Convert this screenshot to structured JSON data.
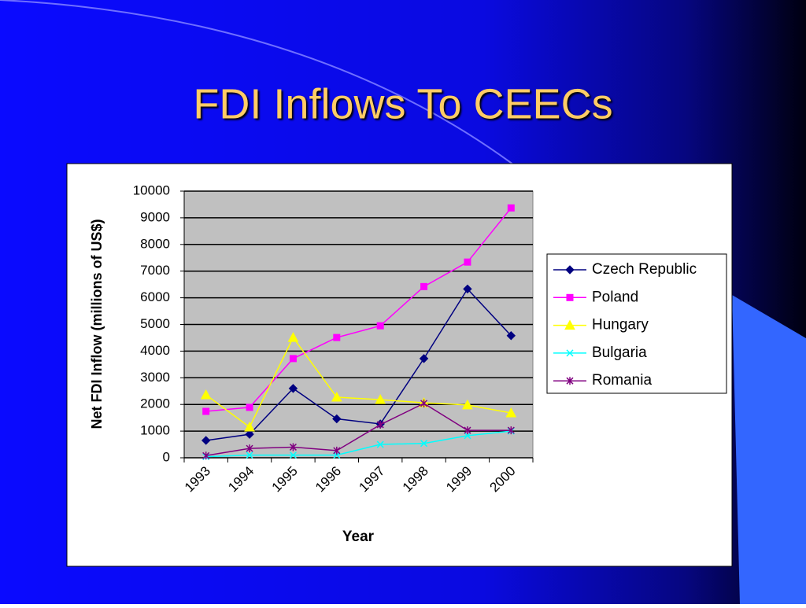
{
  "chart_data": {
    "type": "line",
    "title": "FDI Inflows To CEECs",
    "x_label": "Year",
    "y_label": "Net FDI Inflow (millions of US$)",
    "categories": [
      "1993",
      "1994",
      "1995",
      "1996",
      "1997",
      "1998",
      "1999",
      "2000"
    ],
    "series": [
      {
        "name": "Czech Republic",
        "color": "#000080",
        "marker": "diamond",
        "values": [
          650,
          880,
          2600,
          1460,
          1270,
          3720,
          6330,
          4580
        ]
      },
      {
        "name": "Poland",
        "color": "#ff00ff",
        "marker": "square",
        "values": [
          1740,
          1890,
          3720,
          4510,
          4950,
          6420,
          7340,
          9370
        ]
      },
      {
        "name": "Hungary",
        "color": "#ffff00",
        "marker": "triangle",
        "values": [
          2360,
          1150,
          4510,
          2270,
          2180,
          2060,
          1980,
          1680
        ]
      },
      {
        "name": "Bulgaria",
        "color": "#00ffff",
        "marker": "x",
        "values": [
          40,
          100,
          100,
          100,
          500,
          540,
          830,
          1000
        ]
      },
      {
        "name": "Romania",
        "color": "#800080",
        "marker": "star",
        "values": [
          80,
          350,
          400,
          270,
          1240,
          2040,
          1030,
          1030
        ]
      }
    ],
    "ylim": [
      0,
      10000
    ],
    "yticks": [
      0,
      1000,
      2000,
      3000,
      4000,
      5000,
      6000,
      7000,
      8000,
      9000,
      10000
    ],
    "grid": true,
    "legend": "right"
  }
}
